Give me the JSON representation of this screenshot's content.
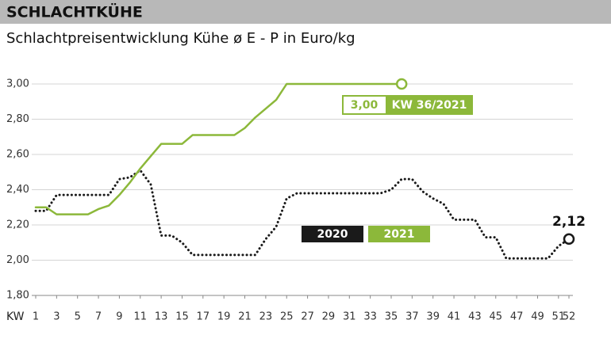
{
  "header": "SCHLACHTKÜHE",
  "chart_data": {
    "type": "line",
    "title": "Schlachtpreisentwicklung Kühe ø E - P in Euro/kg",
    "xlabel": "KW",
    "x": [
      1,
      2,
      3,
      4,
      5,
      6,
      7,
      8,
      9,
      10,
      11,
      12,
      13,
      14,
      15,
      16,
      17,
      18,
      19,
      20,
      21,
      22,
      23,
      24,
      25,
      26,
      27,
      28,
      29,
      30,
      31,
      32,
      33,
      34,
      35,
      36,
      37,
      38,
      39,
      40,
      41,
      42,
      43,
      44,
      45,
      46,
      47,
      48,
      49,
      50,
      51,
      52
    ],
    "xlim": [
      1,
      52
    ],
    "xticks": [
      1,
      3,
      5,
      7,
      9,
      11,
      13,
      15,
      17,
      19,
      21,
      23,
      25,
      27,
      29,
      31,
      33,
      35,
      37,
      39,
      41,
      43,
      45,
      47,
      49,
      51,
      52
    ],
    "ylim": [
      1.8,
      3.0
    ],
    "yticks": [
      {
        "value": 1.8,
        "label": "1,80"
      },
      {
        "value": 2.0,
        "label": "2,00"
      },
      {
        "value": 2.2,
        "label": "2,20"
      },
      {
        "value": 2.4,
        "label": "2,40"
      },
      {
        "value": 2.6,
        "label": "2,60"
      },
      {
        "value": 2.8,
        "label": "2,80"
      },
      {
        "value": 3.0,
        "label": "3,00"
      }
    ],
    "grid": true,
    "series": [
      {
        "name": "2020",
        "color": "#1a1a1a",
        "style": "dotted",
        "values": [
          2.28,
          2.28,
          2.37,
          2.37,
          2.37,
          2.37,
          2.37,
          2.37,
          2.46,
          2.47,
          2.51,
          2.43,
          2.14,
          2.14,
          2.1,
          2.03,
          2.03,
          2.03,
          2.03,
          2.03,
          2.03,
          2.03,
          2.12,
          2.19,
          2.35,
          2.38,
          2.38,
          2.38,
          2.38,
          2.38,
          2.38,
          2.38,
          2.38,
          2.38,
          2.4,
          2.46,
          2.46,
          2.39,
          2.35,
          2.32,
          2.23,
          2.23,
          2.23,
          2.13,
          2.13,
          2.01,
          2.01,
          2.01,
          2.01,
          2.01,
          2.08,
          2.12
        ],
        "value_labels": [
          null,
          null,
          null,
          null,
          null,
          null,
          null,
          null,
          null,
          null,
          null,
          null,
          null,
          null,
          null,
          null,
          null,
          null,
          null,
          null,
          null,
          null,
          null,
          null,
          null,
          null,
          null,
          null,
          null,
          null,
          null,
          null,
          null,
          null,
          null,
          null,
          null,
          null,
          null,
          null,
          null,
          null,
          null,
          null,
          null,
          null,
          null,
          null,
          null,
          null,
          null,
          "2,12"
        ]
      },
      {
        "name": "2021",
        "color": "#8cb83a",
        "style": "solid",
        "values": [
          2.3,
          2.3,
          2.26,
          2.26,
          2.26,
          2.26,
          2.29,
          2.31,
          2.37,
          2.44,
          2.52,
          2.59,
          2.66,
          2.66,
          2.66,
          2.71,
          2.71,
          2.71,
          2.71,
          2.71,
          2.75,
          2.81,
          2.86,
          2.91,
          3.0,
          3.0,
          3.0,
          3.0,
          3.0,
          3.0,
          3.0,
          3.0,
          3.0,
          3.0,
          3.0,
          3.0,
          null,
          null,
          null,
          null,
          null,
          null,
          null,
          null,
          null,
          null,
          null,
          null,
          null,
          null,
          null,
          null
        ],
        "value_labels": [
          null,
          null,
          null,
          null,
          null,
          null,
          null,
          null,
          null,
          null,
          null,
          null,
          null,
          null,
          null,
          null,
          null,
          null,
          null,
          null,
          null,
          null,
          null,
          null,
          null,
          null,
          null,
          null,
          null,
          null,
          null,
          null,
          null,
          null,
          null,
          "3,00",
          null,
          null,
          null,
          null,
          null,
          null,
          null,
          null,
          null,
          null,
          null,
          null,
          null,
          null,
          null,
          null
        ],
        "period_label": "KW 36/2021"
      }
    ]
  }
}
